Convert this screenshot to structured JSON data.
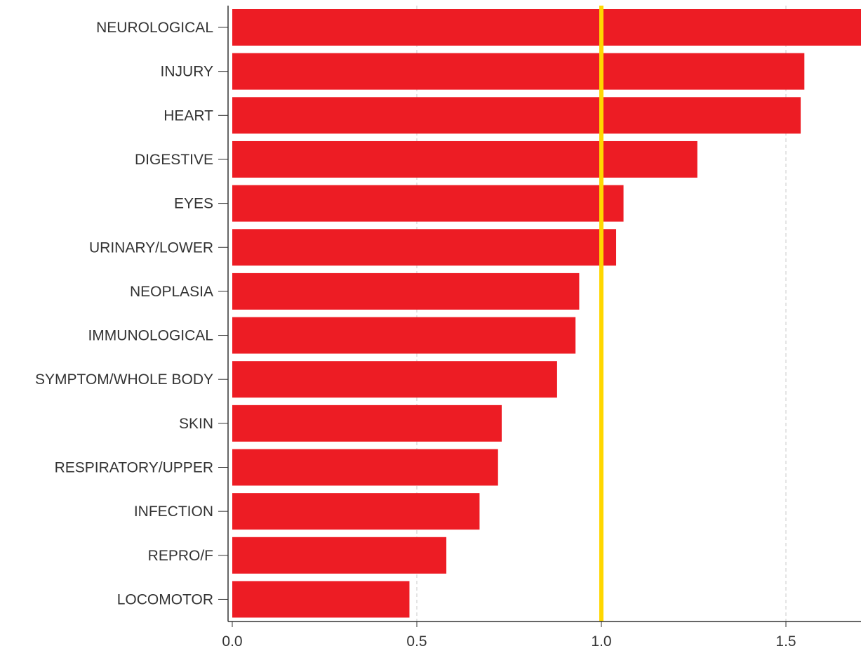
{
  "chart_data": {
    "type": "bar",
    "orientation": "horizontal",
    "categories": [
      "NEUROLOGICAL",
      "INJURY",
      "HEART",
      "DIGESTIVE",
      "EYES",
      "URINARY/LOWER",
      "NEOPLASIA",
      "IMMUNOLOGICAL",
      "SYMPTOM/WHOLE BODY",
      "SKIN",
      "RESPIRATORY/UPPER",
      "INFECTION",
      "REPRO/F",
      "LOCOMOTOR"
    ],
    "values": [
      1.72,
      1.55,
      1.54,
      1.26,
      1.06,
      1.04,
      0.94,
      0.93,
      0.88,
      0.73,
      0.72,
      0.67,
      0.58,
      0.48
    ],
    "x_ticks": [
      "0.0",
      "0.5",
      "1.0",
      "1.5"
    ],
    "xlim": [
      0,
      1.7
    ],
    "reference_line": 1.0,
    "grid": "vertical dashed",
    "title": "",
    "xlabel": "",
    "ylabel": "",
    "colors": {
      "bar": "#ed1c24",
      "reference_line": "#ffd700",
      "grid": "#c8c8c8",
      "axis": "#333333"
    }
  }
}
